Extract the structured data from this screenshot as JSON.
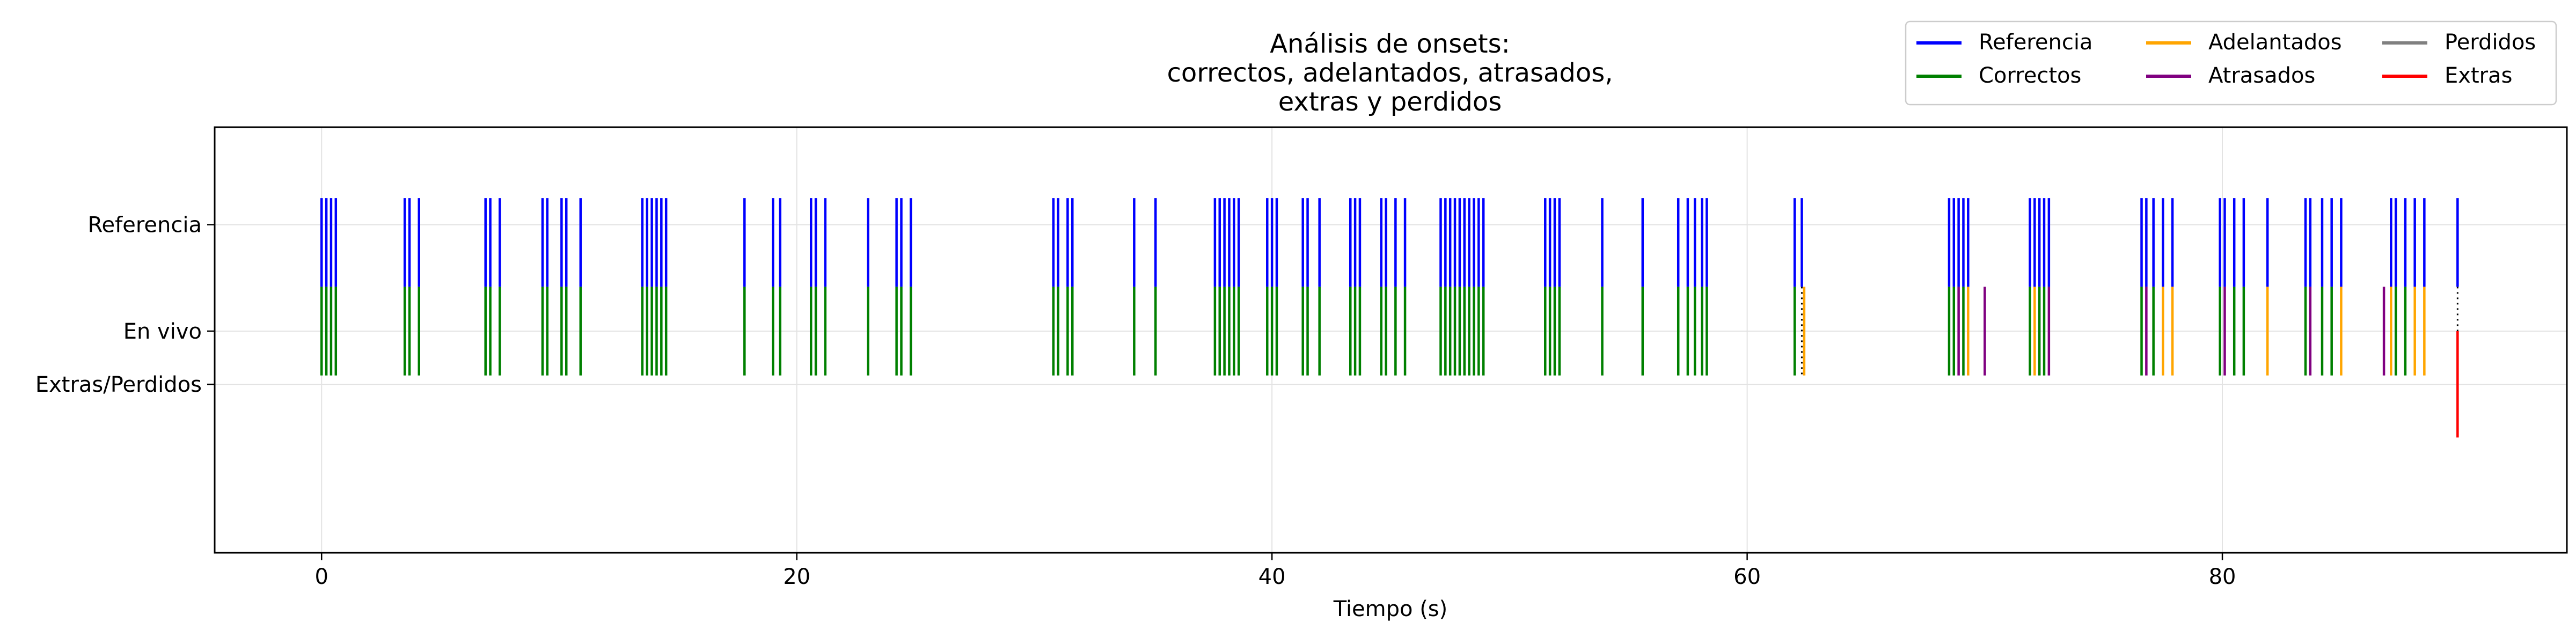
{
  "chart_data": {
    "type": "scatter",
    "title": [
      "Análisis de onsets:",
      "correctos, adelantados, atrasados,",
      "extras y perdidos"
    ],
    "xlabel": "Tiempo (s)",
    "ylabel": "",
    "xlim": [
      -4.5,
      94.5
    ],
    "xticks": [
      0,
      20,
      40,
      60,
      80
    ],
    "ylim": [
      -1.25,
      1.15
    ],
    "yticks": [
      {
        "label": "Referencia",
        "value": 0.6
      },
      {
        "label": "En vivo",
        "value": 0
      },
      {
        "label": "Extras/Perdidos",
        "value": -0.3
      }
    ],
    "grid": true,
    "legend": {
      "placement": "top-right",
      "ncol": 3,
      "entries": [
        {
          "name": "Referencia",
          "color": "#0000ff"
        },
        {
          "name": "Correctos",
          "color": "#008000"
        },
        {
          "name": "Adelantados",
          "color": "#ffa500"
        },
        {
          "name": "Atrasados",
          "color": "#800080"
        },
        {
          "name": "Perdidos",
          "color": "#808080"
        },
        {
          "name": "Extras",
          "color": "#ff0000"
        }
      ]
    },
    "series": [
      {
        "name": "Referencia",
        "color": "#0000ff",
        "y_range": [
          0.25,
          0.75
        ],
        "x": [
          0.0,
          0.2,
          0.4,
          0.6,
          3.5,
          3.7,
          4.1,
          6.9,
          7.1,
          7.5,
          9.3,
          9.5,
          10.1,
          10.3,
          10.9,
          13.5,
          13.7,
          13.9,
          14.1,
          14.3,
          14.5,
          17.8,
          19.0,
          19.3,
          20.6,
          20.8,
          21.2,
          23.0,
          24.2,
          24.4,
          24.8,
          30.8,
          31.0,
          31.4,
          31.6,
          34.2,
          35.1,
          37.6,
          37.8,
          38.0,
          38.2,
          38.4,
          38.6,
          39.8,
          40.0,
          40.2,
          41.3,
          41.5,
          42.0,
          43.3,
          43.5,
          43.7,
          44.6,
          44.8,
          45.2,
          45.6,
          47.1,
          47.3,
          47.5,
          47.7,
          47.9,
          48.1,
          48.3,
          48.5,
          48.7,
          48.9,
          51.5,
          51.7,
          51.9,
          52.1,
          53.9,
          55.6,
          57.1,
          57.5,
          57.8,
          58.1,
          58.3,
          62.0,
          62.3,
          68.5,
          68.7,
          68.9,
          69.1,
          69.3,
          71.9,
          72.1,
          72.3,
          72.5,
          72.7,
          76.6,
          76.8,
          77.1,
          77.5,
          77.9,
          79.9,
          80.1,
          80.5,
          80.9,
          81.9,
          83.5,
          83.7,
          84.2,
          84.6,
          85.0,
          87.1,
          87.3,
          87.7,
          88.1,
          88.5,
          89.9
        ]
      },
      {
        "name": "Correctos",
        "color": "#008000",
        "y_range": [
          -0.25,
          0.25
        ],
        "x": [
          0.0,
          0.2,
          0.4,
          0.6,
          3.5,
          3.7,
          4.1,
          6.9,
          7.1,
          7.5,
          9.3,
          9.5,
          10.1,
          10.3,
          10.9,
          13.5,
          13.7,
          13.9,
          14.1,
          14.3,
          14.5,
          17.8,
          19.0,
          19.3,
          20.6,
          20.8,
          21.2,
          23.0,
          24.2,
          24.4,
          24.8,
          30.8,
          31.0,
          31.4,
          31.6,
          34.2,
          35.1,
          37.6,
          37.8,
          38.0,
          38.2,
          38.4,
          38.6,
          39.8,
          40.0,
          40.2,
          41.3,
          41.5,
          42.0,
          43.3,
          43.5,
          43.7,
          44.6,
          44.8,
          45.2,
          45.6,
          47.1,
          47.3,
          47.5,
          47.7,
          47.9,
          48.1,
          48.3,
          48.5,
          48.7,
          48.9,
          51.5,
          51.7,
          51.9,
          52.1,
          53.9,
          55.6,
          57.1,
          57.5,
          57.8,
          58.1,
          58.3,
          62.0,
          68.5,
          68.7,
          69.1,
          71.9,
          72.3,
          72.5,
          76.6,
          77.1,
          79.9,
          80.5,
          80.9,
          83.5,
          84.2,
          84.6,
          87.3,
          87.7
        ]
      },
      {
        "name": "Adelantados",
        "color": "#ffa500",
        "y_range": [
          -0.25,
          0.25
        ],
        "x": [
          62.4,
          69.3,
          72.1,
          77.5,
          77.9,
          81.9,
          85.0,
          87.1,
          88.1,
          88.5
        ]
      },
      {
        "name": "Atrasados",
        "color": "#800080",
        "y_range": [
          -0.25,
          0.25
        ],
        "x": [
          68.9,
          70.0,
          72.7,
          76.8,
          80.1,
          83.7,
          86.8
        ]
      },
      {
        "name": "Perdidos",
        "color": "#808080",
        "y_range": [
          -0.55,
          -0.05
        ],
        "x": []
      },
      {
        "name": "Extras",
        "color": "#ff0000",
        "y_range": [
          -0.6,
          0.0
        ],
        "x": [
          89.9
        ]
      }
    ]
  }
}
